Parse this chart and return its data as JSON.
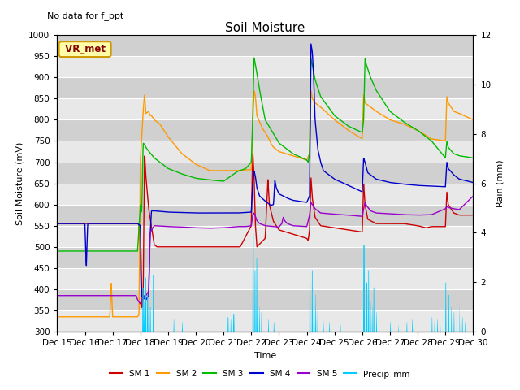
{
  "title": "Soil Moisture",
  "subtitle": "No data for f_ppt",
  "xlabel": "Time",
  "ylabel_left": "Soil Moisture (mV)",
  "ylabel_right": "Rain (mm)",
  "ylim_left": [
    300,
    1000
  ],
  "ylim_right": [
    0,
    12
  ],
  "x_tick_labels": [
    "Dec 15",
    "Dec 16",
    "Dec 17",
    "Dec 18",
    "Dec 19",
    "Dec 20",
    "Dec 21",
    "Dec 22",
    "Dec 23",
    "Dec 24",
    "Dec 25",
    "Dec 26",
    "Dec 27",
    "Dec 28",
    "Dec 29",
    "Dec 30"
  ],
  "colors": {
    "SM1": "#cc0000",
    "SM2": "#ff9900",
    "SM3": "#00bb00",
    "SM4": "#0000cc",
    "SM5": "#9900cc",
    "precip": "#00ccff"
  },
  "legend_box_color": "#cc9900",
  "legend_box_bg": "#ffff99",
  "background_color": "#d8d8d8",
  "grid_color": "#f0f0f0",
  "figsize": [
    6.4,
    4.8
  ],
  "dpi": 100
}
